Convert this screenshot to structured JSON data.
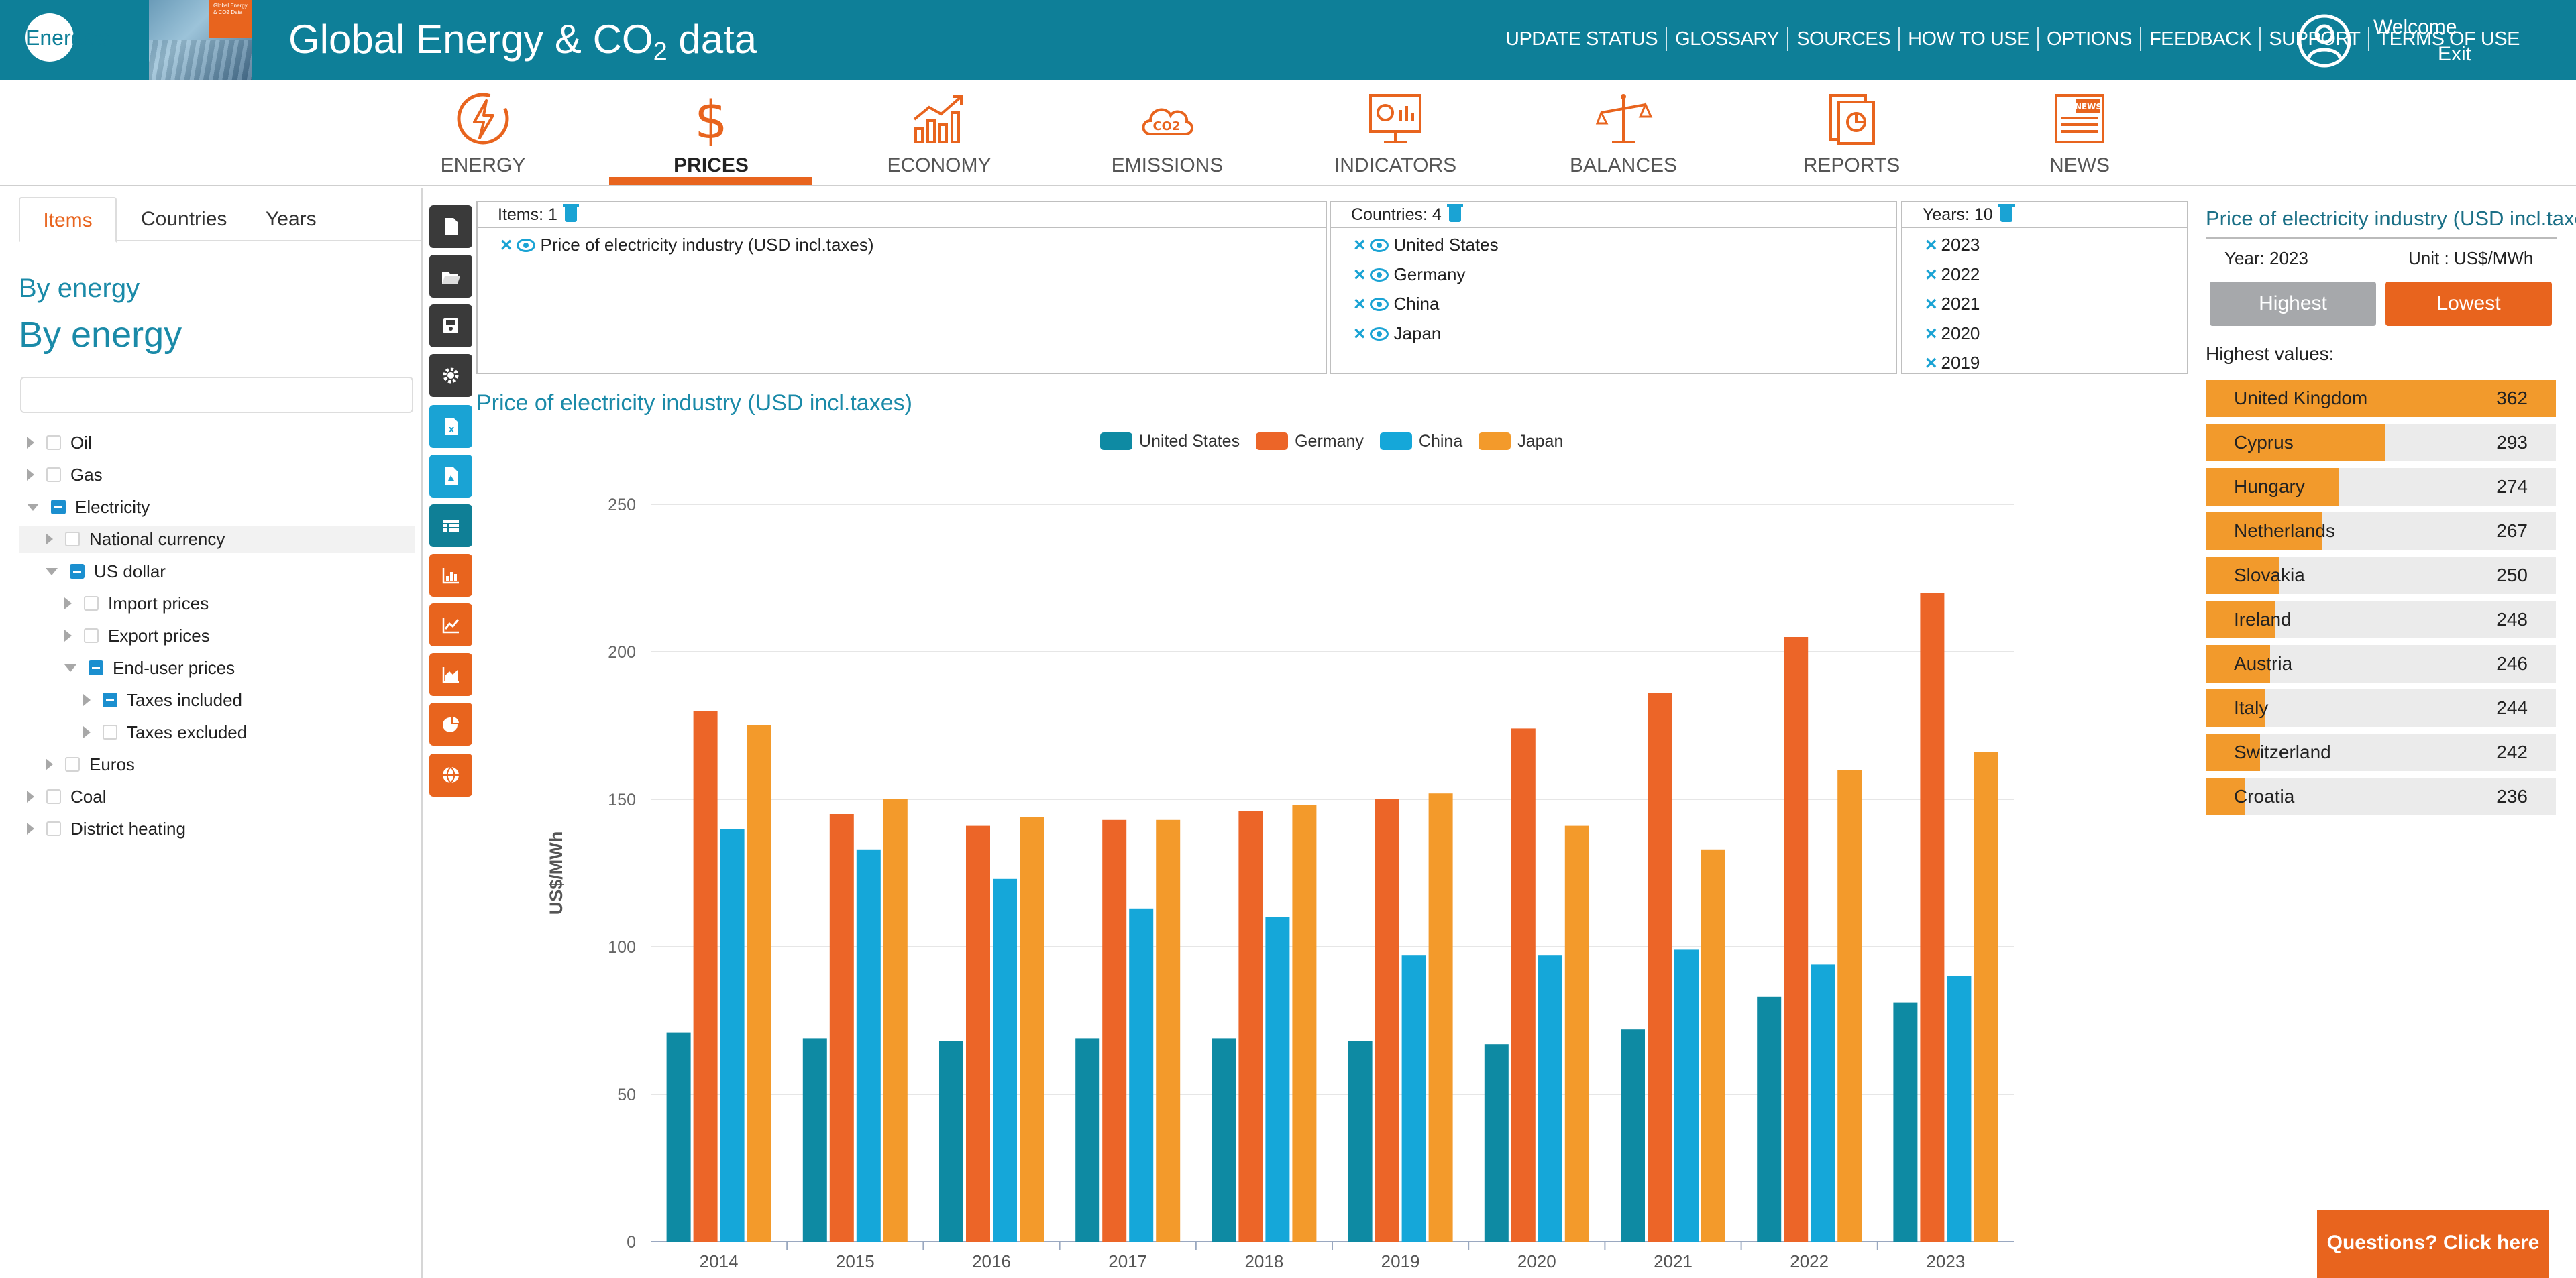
{
  "header": {
    "logo_text": "Enerdata",
    "book_tag_text": "Global Energy & CO2 Data",
    "title_main": "Global Energy & CO",
    "title_sub": "2",
    "title_tail": " data",
    "top_links": [
      "UPDATE STATUS",
      "GLOSSARY",
      "SOURCES",
      "HOW TO USE",
      "OPTIONS",
      "FEEDBACK",
      "SUPPORT",
      "TERMS OF USE"
    ],
    "welcome": "Welcome",
    "exit": "Exit",
    "bg_color": "#0e7f98"
  },
  "main_nav": {
    "items": [
      "ENERGY",
      "PRICES",
      "ECONOMY",
      "EMISSIONS",
      "INDICATORS",
      "BALANCES",
      "REPORTS",
      "NEWS"
    ],
    "active": "PRICES",
    "accent": "#e8641e"
  },
  "sidebar": {
    "tabs": [
      "Items",
      "Countries",
      "Years"
    ],
    "active_tab": "Items",
    "heading_small": "By energy",
    "heading_big": "By energy",
    "search_placeholder": "",
    "tree": [
      {
        "label": "Oil",
        "level": 0,
        "toggle": "collapsed",
        "check": "none"
      },
      {
        "label": "Gas",
        "level": 0,
        "toggle": "collapsed",
        "check": "none"
      },
      {
        "label": "Electricity",
        "level": 0,
        "toggle": "expanded",
        "check": "partial"
      },
      {
        "label": "National currency",
        "level": 1,
        "toggle": "collapsed",
        "check": "none"
      },
      {
        "label": "US dollar",
        "level": 1,
        "toggle": "expanded",
        "check": "partial"
      },
      {
        "label": "Import prices",
        "level": 2,
        "toggle": "collapsed",
        "check": "none"
      },
      {
        "label": "Export prices",
        "level": 2,
        "toggle": "collapsed",
        "check": "none"
      },
      {
        "label": "End-user prices",
        "level": 2,
        "toggle": "expanded",
        "check": "partial"
      },
      {
        "label": "Taxes included",
        "level": 3,
        "toggle": "collapsed",
        "check": "partial"
      },
      {
        "label": "Taxes excluded",
        "level": 3,
        "toggle": "collapsed",
        "check": "none"
      },
      {
        "label": "Euros",
        "level": 1,
        "toggle": "collapsed",
        "check": "none"
      },
      {
        "label": "Coal",
        "level": 0,
        "toggle": "collapsed",
        "check": "none"
      },
      {
        "label": "District heating",
        "level": 0,
        "toggle": "collapsed",
        "check": "none"
      }
    ]
  },
  "tools": [
    "file-icon",
    "folder-open-icon",
    "save-icon",
    "gear-icon",
    "excel-export-icon",
    "pdf-export-icon",
    "table-view-icon",
    "bar-chart-icon",
    "line-chart-icon",
    "area-chart-icon",
    "pie-chart-icon",
    "globe-map-icon"
  ],
  "selection": {
    "items_header": "Items: 1",
    "items": [
      "Price of electricity industry (USD incl.taxes)"
    ],
    "countries_header": "Countries: 4",
    "countries": [
      "United States",
      "Germany",
      "China",
      "Japan"
    ],
    "years_header": "Years: 10",
    "years": [
      "2023",
      "2022",
      "2021",
      "2020",
      "2019"
    ]
  },
  "chart_title": "Price of electricity industry (USD incl.taxes)",
  "chart_data": {
    "type": "bar",
    "categories": [
      "2014",
      "2015",
      "2016",
      "2017",
      "2018",
      "2019",
      "2020",
      "2021",
      "2022",
      "2023"
    ],
    "series": [
      {
        "name": "United States",
        "color": "#0e8aa3",
        "values": [
          71,
          69,
          68,
          69,
          69,
          68,
          67,
          72,
          83,
          81
        ]
      },
      {
        "name": "Germany",
        "color": "#ec6528",
        "values": [
          180,
          145,
          141,
          143,
          146,
          150,
          174,
          186,
          205,
          220
        ]
      },
      {
        "name": "China",
        "color": "#15a7d9",
        "values": [
          140,
          133,
          123,
          113,
          110,
          97,
          97,
          99,
          94,
          90
        ]
      },
      {
        "name": "Japan",
        "color": "#f39a2b",
        "values": [
          175,
          150,
          144,
          143,
          148,
          152,
          141,
          133,
          160,
          166
        ]
      }
    ],
    "ylabel": "US$/MWh",
    "ylim": [
      0,
      250
    ],
    "yticks": [
      0,
      50,
      100,
      150,
      200,
      250
    ],
    "grid": true,
    "legend": "top-center"
  },
  "ranking": {
    "title": "Price of electricity industry (USD incl.taxes)",
    "year_label": "Year: 2023",
    "unit_label": "Unit : US$/MWh",
    "highest_label": "Highest",
    "lowest_label": "Lowest",
    "list_label": "Highest values:",
    "max": 362,
    "items": [
      {
        "country": "United Kingdom",
        "value": 362
      },
      {
        "country": "Cyprus",
        "value": 293
      },
      {
        "country": "Hungary",
        "value": 274
      },
      {
        "country": "Netherlands",
        "value": 267
      },
      {
        "country": "Slovakia",
        "value": 250
      },
      {
        "country": "Ireland",
        "value": 248
      },
      {
        "country": "Austria",
        "value": 246
      },
      {
        "country": "Italy",
        "value": 244
      },
      {
        "country": "Switzerland",
        "value": 242
      },
      {
        "country": "Croatia",
        "value": 236
      }
    ]
  },
  "help_button": "Questions? Click here"
}
